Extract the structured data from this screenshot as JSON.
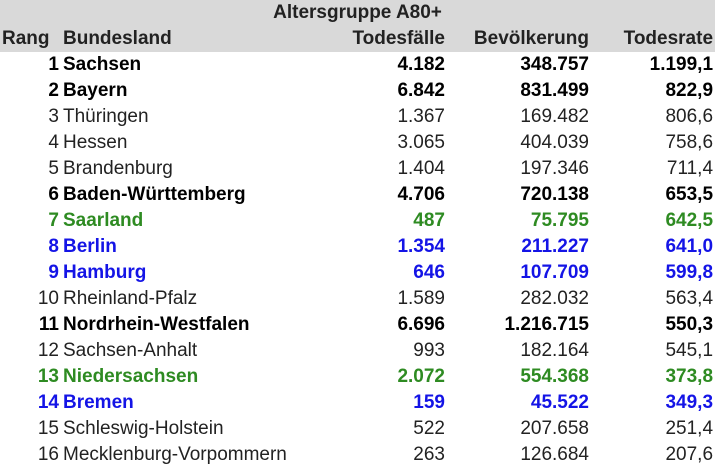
{
  "table": {
    "title": "Altersgruppe A80+",
    "headers": {
      "rang": "Rang",
      "bundesland": "Bundesland",
      "todesfaelle": "Todesfälle",
      "bevoelkerung": "Bevölkerung",
      "todesrate": "Todesrate"
    },
    "rows": [
      {
        "rang": "1",
        "bundesland": "Sachsen",
        "todesfaelle": "4.182",
        "bevoelkerung": "348.757",
        "todesrate": "1.199,1",
        "style": "bold"
      },
      {
        "rang": "2",
        "bundesland": "Bayern",
        "todesfaelle": "6.842",
        "bevoelkerung": "831.499",
        "todesrate": "822,9",
        "style": "bold"
      },
      {
        "rang": "3",
        "bundesland": "Thüringen",
        "todesfaelle": "1.367",
        "bevoelkerung": "169.482",
        "todesrate": "806,6",
        "style": "normal"
      },
      {
        "rang": "4",
        "bundesland": "Hessen",
        "todesfaelle": "3.065",
        "bevoelkerung": "404.039",
        "todesrate": "758,6",
        "style": "normal"
      },
      {
        "rang": "5",
        "bundesland": "Brandenburg",
        "todesfaelle": "1.404",
        "bevoelkerung": "197.346",
        "todesrate": "711,4",
        "style": "normal"
      },
      {
        "rang": "6",
        "bundesland": "Baden-Württemberg",
        "todesfaelle": "4.706",
        "bevoelkerung": "720.138",
        "todesrate": "653,5",
        "style": "bold"
      },
      {
        "rang": "7",
        "bundesland": "Saarland",
        "todesfaelle": "487",
        "bevoelkerung": "75.795",
        "todesrate": "642,5",
        "style": "green"
      },
      {
        "rang": "8",
        "bundesland": "Berlin",
        "todesfaelle": "1.354",
        "bevoelkerung": "211.227",
        "todesrate": "641,0",
        "style": "blue"
      },
      {
        "rang": "9",
        "bundesland": "Hamburg",
        "todesfaelle": "646",
        "bevoelkerung": "107.709",
        "todesrate": "599,8",
        "style": "blue"
      },
      {
        "rang": "10",
        "bundesland": "Rheinland-Pfalz",
        "todesfaelle": "1.589",
        "bevoelkerung": "282.032",
        "todesrate": "563,4",
        "style": "normal"
      },
      {
        "rang": "11",
        "bundesland": "Nordrhein-Westfalen",
        "todesfaelle": "6.696",
        "bevoelkerung": "1.216.715",
        "todesrate": "550,3",
        "style": "bold"
      },
      {
        "rang": "12",
        "bundesland": "Sachsen-Anhalt",
        "todesfaelle": "993",
        "bevoelkerung": "182.164",
        "todesrate": "545,1",
        "style": "normal"
      },
      {
        "rang": "13",
        "bundesland": "Niedersachsen",
        "todesfaelle": "2.072",
        "bevoelkerung": "554.368",
        "todesrate": "373,8",
        "style": "green"
      },
      {
        "rang": "14",
        "bundesland": "Bremen",
        "todesfaelle": "159",
        "bevoelkerung": "45.522",
        "todesrate": "349,3",
        "style": "blue"
      },
      {
        "rang": "15",
        "bundesland": "Schleswig-Holstein",
        "todesfaelle": "522",
        "bevoelkerung": "207.658",
        "todesrate": "251,4",
        "style": "normal"
      },
      {
        "rang": "16",
        "bundesland": "Mecklenburg-Vorpommern",
        "todesfaelle": "263",
        "bevoelkerung": "126.684",
        "todesrate": "207,6",
        "style": "normal"
      }
    ]
  },
  "colors": {
    "header_bg": "#d9d9d9",
    "green": "#2e8b22",
    "blue": "#1414e6",
    "black": "#000000"
  }
}
